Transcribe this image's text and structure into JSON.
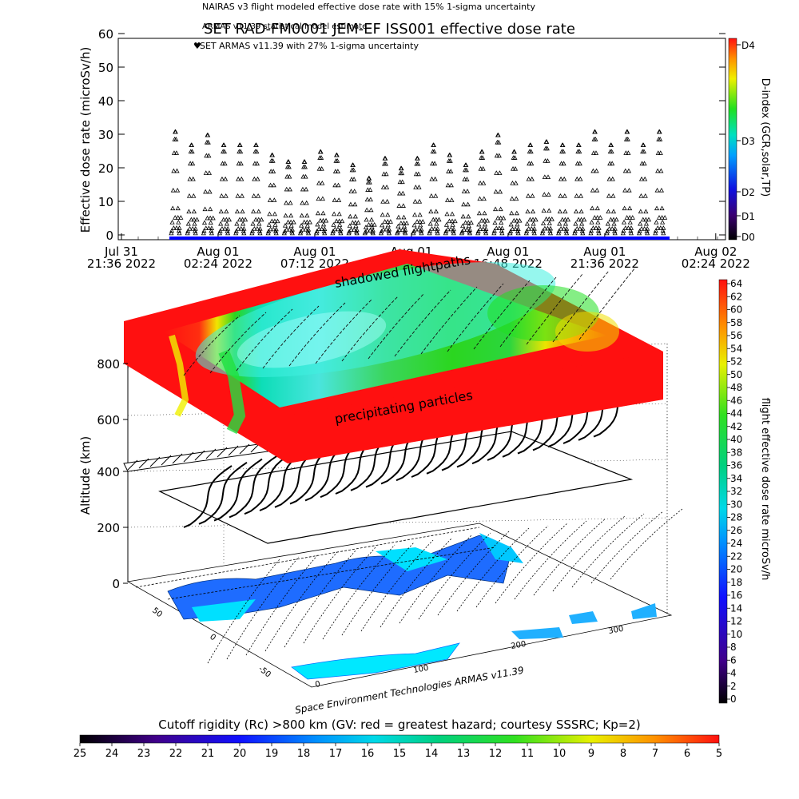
{
  "header": {
    "legend_nairas": "NAIRAS v3 flight modeled effective dose rate with 15% 1-sigma uncertainty",
    "legend_armas_model": "ARMAS v11.39 statistical model estimate",
    "legend_set_armas": "SET ARMAS v11.39 with 27% 1-sigma uncertainty",
    "title": "SET RAD-FM0001 JEM-EF ISS001 effective dose rate"
  },
  "top_chart": {
    "ylabel": "Effective dose rate (microSv/h)",
    "yticks": [
      "0",
      "10",
      "20",
      "30",
      "40",
      "50",
      "60"
    ],
    "xticks": [
      {
        "l1": "Jul 31",
        "l2": "21:36 2022"
      },
      {
        "l1": "Aug 01",
        "l2": "02:24 2022"
      },
      {
        "l1": "Aug 01",
        "l2": "07:12 2022"
      },
      {
        "l1": "Aug 01",
        "l2": "12:00 2022"
      },
      {
        "l1": "Aug 01",
        "l2": "16:48 2022"
      },
      {
        "l1": "Aug 01",
        "l2": "21:36 2022"
      },
      {
        "l1": "Aug 02",
        "l2": "02:24 2022"
      }
    ],
    "dindex_label": "D-index (GCR,solar,TP)",
    "dindex_ticks": [
      "D4",
      "D3",
      "D2",
      "D1",
      "D0"
    ]
  },
  "chart_data": [
    {
      "type": "scatter",
      "title": "SET RAD-FM0001 JEM-EF ISS001 effective dose rate",
      "xlabel": "",
      "ylabel": "Effective dose rate (microSv/h)",
      "x_range": [
        "2022-07-31 21:36",
        "2022-08-02 02:24"
      ],
      "ylim": [
        0,
        60
      ],
      "x_data_range": [
        "2022-07-31 23:00",
        "2022-08-01 22:50"
      ],
      "series": [
        {
          "name": "SET ARMAS v11.39 with 27% 1-sigma uncertainty",
          "marker": "triangle",
          "orbit_peaks": [
            31,
            27,
            30,
            27,
            27,
            27,
            24,
            22,
            22,
            25,
            24,
            21,
            17,
            23,
            20,
            23,
            27,
            24,
            21,
            25,
            30,
            25,
            27,
            28,
            27,
            27,
            31,
            27,
            31,
            27,
            31
          ],
          "minimum": 0.5
        }
      ],
      "dindex_range": [
        "D0",
        "D4"
      ]
    },
    {
      "type": "surface-3d",
      "zlabel": "Altitude (km)",
      "zticks": [
        "0",
        "200",
        "400",
        "600",
        "800"
      ],
      "lat_ticks": [
        "-50",
        "0",
        "50"
      ],
      "lon_ticks": [
        "0",
        "100",
        "200",
        "300"
      ],
      "annotations": [
        "shadowed flightpaths",
        "precipitating particles"
      ],
      "credit": "Space Environment Technologies ARMAS v11.39",
      "colorbar_label": "flight effective dose rate microSv/h",
      "colorbar_range": [
        0,
        64
      ],
      "colorbar_ticks": [
        "0",
        "2",
        "4",
        "6",
        "8",
        "10",
        "12",
        "14",
        "16",
        "18",
        "20",
        "22",
        "24",
        "26",
        "28",
        "30",
        "32",
        "34",
        "36",
        "38",
        "40",
        "42",
        "44",
        "46",
        "48",
        "50",
        "52",
        "54",
        "56",
        "58",
        "60",
        "62",
        "64"
      ]
    }
  ],
  "bottom_bar": {
    "caption": "Cutoff rigidity (Rc) >800 km (GV: red = greatest hazard; courtesy SSSRC; Kp=2)",
    "ticks": [
      "25",
      "24",
      "23",
      "22",
      "21",
      "20",
      "19",
      "18",
      "17",
      "16",
      "15",
      "14",
      "13",
      "12",
      "11",
      "10",
      "9",
      "8",
      "7",
      "6",
      "5"
    ]
  },
  "colors": {
    "series_blue": "#0000ff",
    "hazard_red": "#ff1010"
  }
}
